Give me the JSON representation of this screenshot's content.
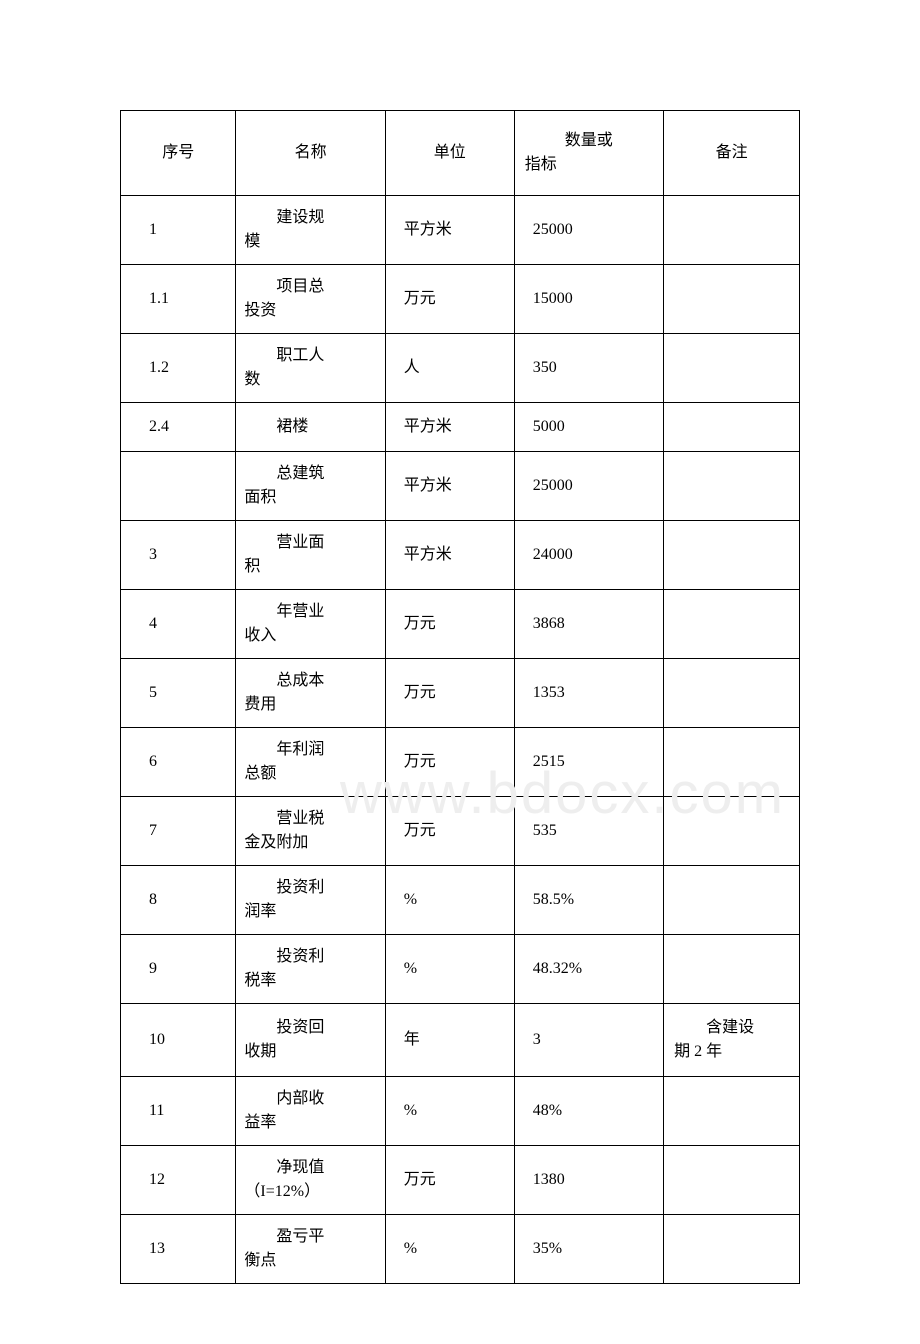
{
  "table": {
    "headers": {
      "c1": "序号",
      "c2": "名称",
      "c3": "单位",
      "c4_line1": "数量或",
      "c4_line2": "指标",
      "c5": "备注"
    },
    "rows": [
      {
        "num": "1",
        "name_line1": "建设规",
        "name_line2": "模",
        "unit": "平方米",
        "qty": "25000",
        "note": ""
      },
      {
        "num": "1.1",
        "name_line1": "项目总",
        "name_line2": "投资",
        "unit": "万元",
        "qty": "15000",
        "note": ""
      },
      {
        "num": "1.2",
        "name_line1": "职工人",
        "name_line2": "数",
        "unit": "人",
        "qty": "350",
        "note": ""
      },
      {
        "num": "2.4",
        "name_line1": "裙楼",
        "name_line2": "",
        "unit": "平方米",
        "qty": "5000",
        "note": ""
      },
      {
        "num": "",
        "name_line1": "总建筑",
        "name_line2": "面积",
        "unit": "平方米",
        "qty": "25000",
        "note": ""
      },
      {
        "num": "3",
        "name_line1": "营业面",
        "name_line2": "积",
        "unit": "平方米",
        "qty": "24000",
        "note": ""
      },
      {
        "num": "4",
        "name_line1": "年营业",
        "name_line2": "收入",
        "unit": "万元",
        "qty": "3868",
        "note": ""
      },
      {
        "num": "5",
        "name_line1": "总成本",
        "name_line2": "费用",
        "unit": "万元",
        "qty": "1353",
        "note": ""
      },
      {
        "num": "6",
        "name_line1": "年利润",
        "name_line2": "总额",
        "unit": "万元",
        "qty": "2515",
        "note": ""
      },
      {
        "num": "7",
        "name_line1": "营业税",
        "name_line2": "金及附加",
        "unit": "万元",
        "qty": "535",
        "note": ""
      },
      {
        "num": "8",
        "name_line1": "投资利",
        "name_line2": "润率",
        "unit": "%",
        "qty": "58.5%",
        "note": ""
      },
      {
        "num": "9",
        "name_line1": "投资利",
        "name_line2": "税率",
        "unit": "%",
        "qty": "48.32%",
        "note": ""
      },
      {
        "num": "10",
        "name_line1": "投资回",
        "name_line2": "收期",
        "unit": "年",
        "qty": "3",
        "note_line1": "含建设",
        "note_line2": "期 2 年"
      },
      {
        "num": "11",
        "name_line1": "内部收",
        "name_line2": "益率",
        "unit": "%",
        "qty": "48%",
        "note": ""
      },
      {
        "num": "12",
        "name_line1": "净现值",
        "name_line2": "（I=12%）",
        "unit": "万元",
        "qty": "1380",
        "note": ""
      },
      {
        "num": "13",
        "name_line1": "盈亏平",
        "name_line2": "衡点",
        "unit": "%",
        "qty": "35%",
        "note": ""
      }
    ]
  },
  "watermark": "www.bdocx.com",
  "colors": {
    "border": "#000000",
    "text": "#000000",
    "background": "#ffffff",
    "watermark": "#eeeeee"
  },
  "typography": {
    "body_fontsize": 16,
    "watermark_fontsize": 58,
    "font_family": "SimSun"
  }
}
